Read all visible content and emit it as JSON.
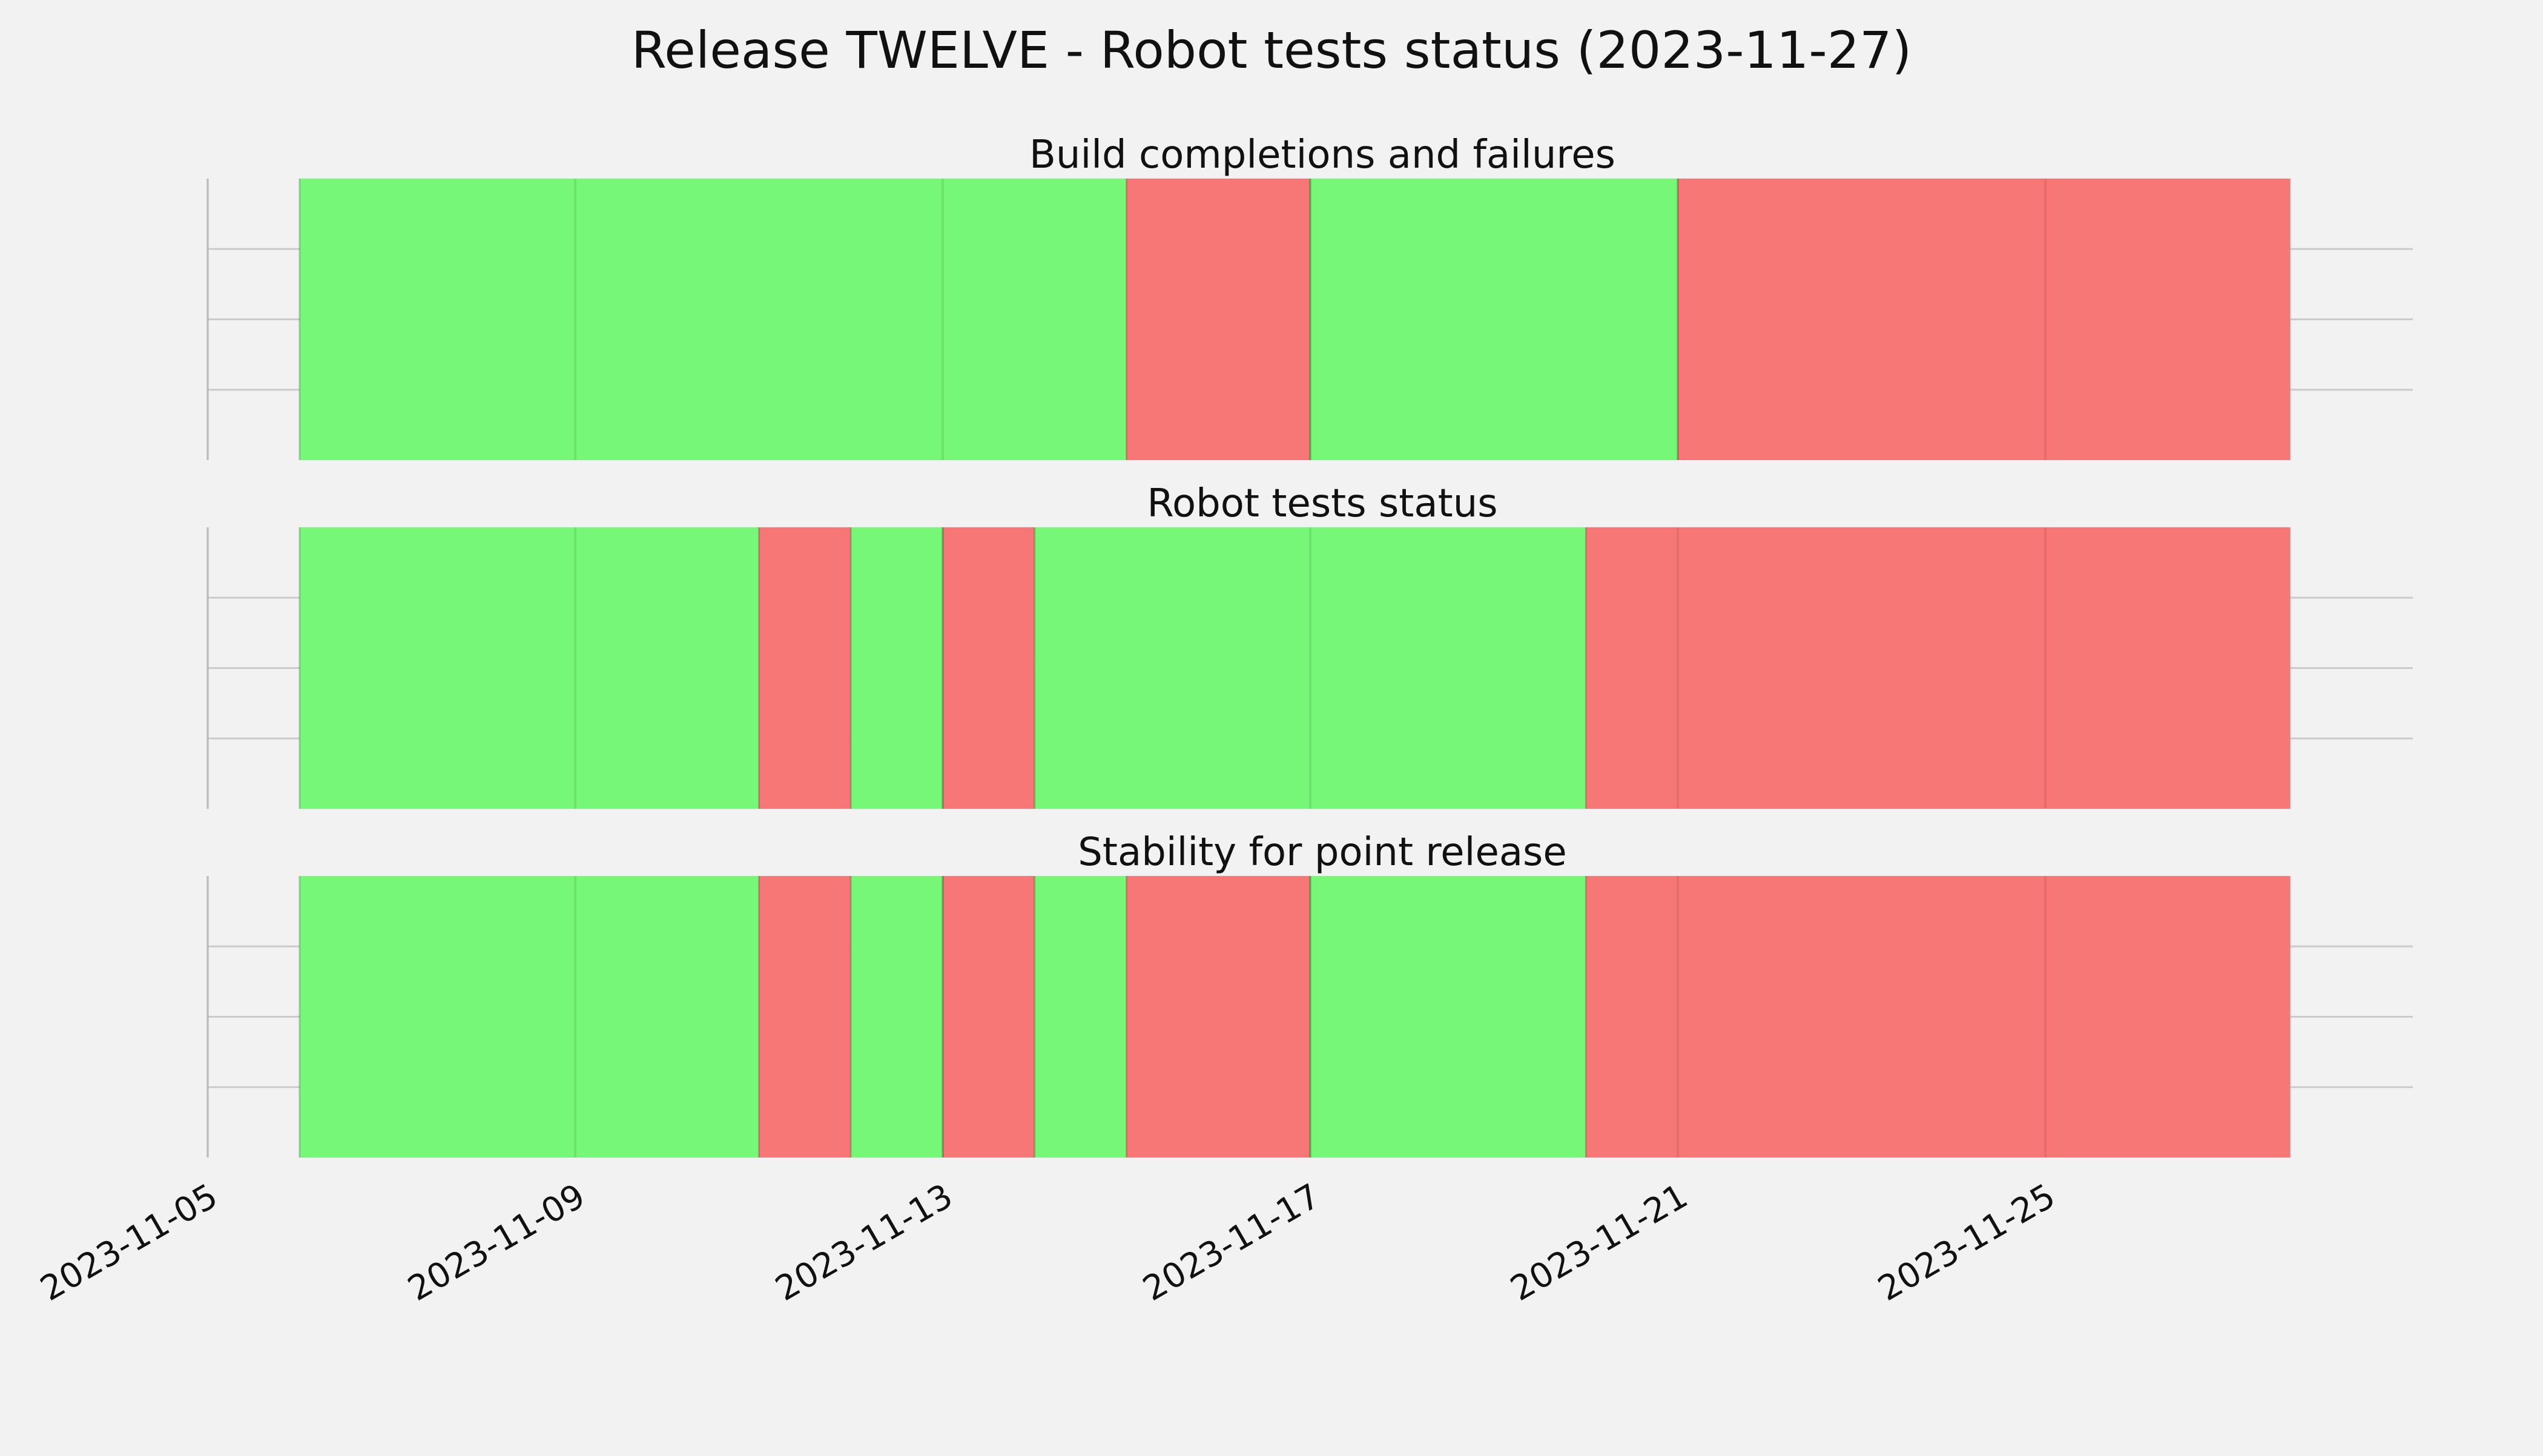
{
  "title": "Release TWELVE - Robot tests status (2023-11-27)",
  "colors": {
    "pass": "#77f777",
    "fail": "#f77777",
    "background": "#f2f2f2",
    "grid": "#cbcbcb"
  },
  "chart_data": {
    "type": "timeline",
    "grid": true,
    "x_axis": {
      "type": "date",
      "range": [
        "2023-11-05",
        "2023-11-29"
      ],
      "ticks": [
        "2023-11-05",
        "2023-11-09",
        "2023-11-13",
        "2023-11-17",
        "2023-11-21",
        "2023-11-25"
      ]
    },
    "panels": [
      {
        "title": "Build completions and failures",
        "segments": [
          {
            "start": "2023-11-06",
            "end": "2023-11-15",
            "status": "pass"
          },
          {
            "start": "2023-11-15",
            "end": "2023-11-17",
            "status": "fail"
          },
          {
            "start": "2023-11-17",
            "end": "2023-11-21",
            "status": "pass"
          },
          {
            "start": "2023-11-21",
            "end": "2023-11-27 16:00",
            "status": "fail"
          }
        ]
      },
      {
        "title": "Robot tests status",
        "segments": [
          {
            "start": "2023-11-06",
            "end": "2023-11-11",
            "status": "pass"
          },
          {
            "start": "2023-11-11",
            "end": "2023-11-12",
            "status": "fail"
          },
          {
            "start": "2023-11-12",
            "end": "2023-11-13",
            "status": "pass"
          },
          {
            "start": "2023-11-13",
            "end": "2023-11-14",
            "status": "fail"
          },
          {
            "start": "2023-11-14",
            "end": "2023-11-20",
            "status": "pass"
          },
          {
            "start": "2023-11-20",
            "end": "2023-11-27 16:00",
            "status": "fail"
          }
        ]
      },
      {
        "title": "Stability for point release",
        "segments": [
          {
            "start": "2023-11-06",
            "end": "2023-11-11",
            "status": "pass"
          },
          {
            "start": "2023-11-11",
            "end": "2023-11-12",
            "status": "fail"
          },
          {
            "start": "2023-11-12",
            "end": "2023-11-13",
            "status": "pass"
          },
          {
            "start": "2023-11-13",
            "end": "2023-11-14",
            "status": "fail"
          },
          {
            "start": "2023-11-14",
            "end": "2023-11-15",
            "status": "pass"
          },
          {
            "start": "2023-11-15",
            "end": "2023-11-17",
            "status": "fail"
          },
          {
            "start": "2023-11-17",
            "end": "2023-11-20",
            "status": "pass"
          },
          {
            "start": "2023-11-20",
            "end": "2023-11-27 16:00",
            "status": "fail"
          }
        ]
      }
    ]
  }
}
